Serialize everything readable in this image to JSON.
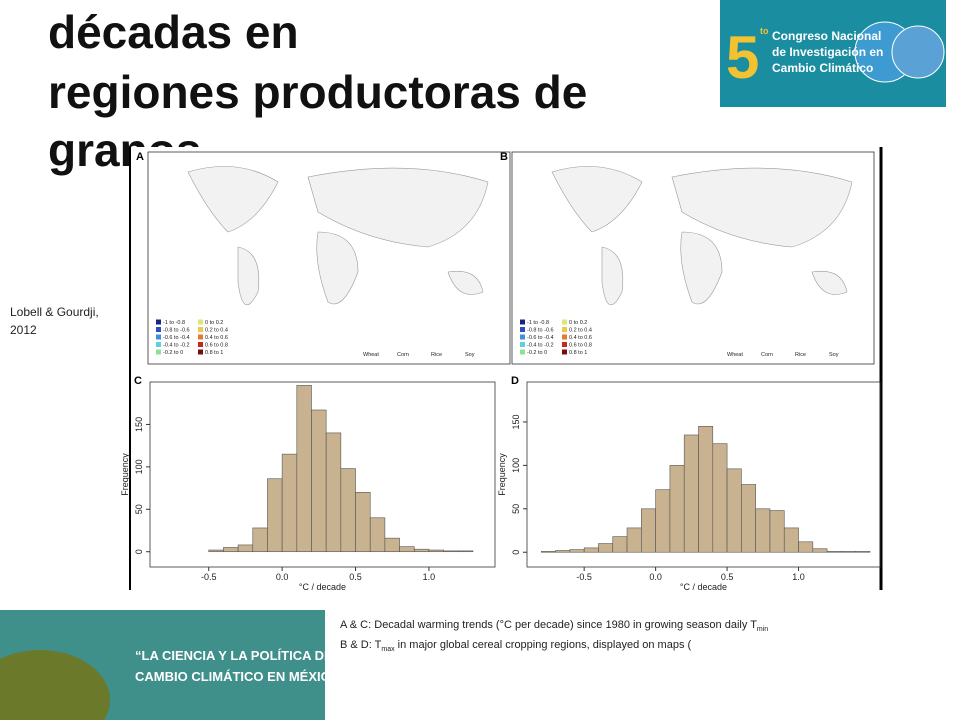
{
  "header": {
    "title_lines": [
      "décadas en",
      "regiones productoras de",
      "granos"
    ]
  },
  "logo": {
    "number": "5",
    "superscript": "to",
    "lines": [
      "Congreso Nacional",
      "de Investigación en",
      "Cambio Climático"
    ]
  },
  "citation": [
    "Lobell & Gourdji,",
    "2012"
  ],
  "maps": {
    "panels": [
      "A",
      "B"
    ],
    "legend_ranges": [
      "-1 to -0.8",
      "-0.8 to -0.6",
      "-0.6 to -0.4",
      "-0.4 to -0.2",
      "-0.2 to 0",
      "0 to 0.2",
      "0.2 to 0.4",
      "0.4 to 0.6",
      "0.6 to 0.8",
      "0.8 to 1"
    ],
    "crops": [
      "Wheat",
      "Corn",
      "Rice",
      "Soy"
    ]
  },
  "histograms": [
    {
      "type": "histogram",
      "panel": "C",
      "xlabel": "°C / decade",
      "ylabel": "Frequency",
      "bins": [
        -0.5,
        -0.4,
        -0.3,
        -0.2,
        -0.1,
        0.0,
        0.1,
        0.2,
        0.3,
        0.4,
        0.5,
        0.6,
        0.7,
        0.8,
        0.9,
        1.0,
        1.1,
        1.2,
        1.3
      ],
      "values": [
        2,
        5,
        8,
        28,
        86,
        115,
        196,
        167,
        140,
        98,
        70,
        40,
        16,
        6,
        3,
        2,
        1,
        1
      ],
      "xlim": [
        -0.9,
        1.45
      ],
      "ylim": [
        -18,
        200
      ],
      "xticks": [
        -0.5,
        {
          "value": 0,
          "label": "0.0"
        },
        0.5,
        {
          "value": 1,
          "label": "1.0"
        }
      ],
      "yticks": [
        0,
        50,
        100,
        150
      ],
      "color": "#c8b28f"
    },
    {
      "type": "histogram",
      "panel": "D",
      "xlabel": "°C / decade",
      "ylabel": "Frequency",
      "bins": [
        -0.8,
        -0.7,
        -0.6,
        -0.5,
        -0.4,
        -0.3,
        -0.2,
        -0.1,
        0.0,
        0.1,
        0.2,
        0.3,
        0.4,
        0.5,
        0.6,
        0.7,
        0.8,
        0.9,
        1.0,
        1.1,
        1.2,
        1.3,
        1.4,
        1.5
      ],
      "values": [
        1,
        2,
        3,
        5,
        10,
        18,
        28,
        50,
        72,
        100,
        135,
        145,
        125,
        96,
        78,
        50,
        48,
        28,
        12,
        4,
        1,
        1,
        1
      ],
      "xlim": [
        -0.9,
        1.57
      ],
      "ylim": [
        -17,
        196
      ],
      "xticks": [
        -0.5,
        {
          "value": 0,
          "label": "0.0"
        },
        0.5,
        {
          "value": 1,
          "label": "1.0"
        }
      ],
      "yticks": [
        0,
        50,
        100,
        150
      ],
      "color": "#c8b28f"
    }
  ],
  "caption": {
    "line1_prefix": "A & C:",
    "line1_text": " Decadal warming trends (°C per decade) since 1980 in growing season daily T",
    "line1_sub": "min",
    "line2_prefix": "B & D: T",
    "line2_sub": "max",
    "line2_text": "  in major global cereal cropping regions, displayed on maps ("
  },
  "banner": {
    "lines": [
      "“LA CIENCIA Y LA POLÍTICA DEL",
      "CAMBIO CLIMÁTICO EN MÉXICO”"
    ]
  }
}
